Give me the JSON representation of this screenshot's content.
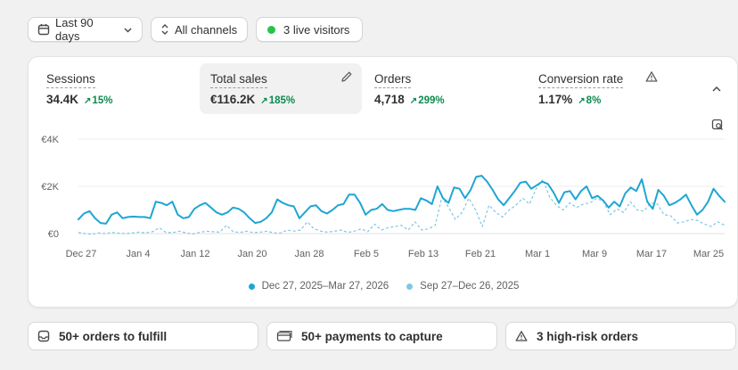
{
  "filters": {
    "date_range": "Last 90 days",
    "channels": "All channels",
    "live_visitors": "3 live visitors",
    "live_color": "#29c34a"
  },
  "metrics": [
    {
      "label": "Sessions",
      "value": "34.4K",
      "change": "15%",
      "active": false
    },
    {
      "label": "Total sales",
      "value": "€116.2K",
      "change": "185%",
      "active": true
    },
    {
      "label": "Orders",
      "value": "4,718",
      "change": "299%",
      "active": false
    },
    {
      "label": "Conversion rate",
      "value": "1.17%",
      "change": "8%",
      "active": false
    }
  ],
  "colors": {
    "positive": "#0c8a4f",
    "current_series": "#1ea6d3",
    "previous_series": "#7fc7e3"
  },
  "chart_data": {
    "type": "line",
    "y_ticks": [
      "€4K",
      "€2K",
      "€0"
    ],
    "ylim": [
      0,
      4000
    ],
    "x_tick_labels": [
      "Dec 27",
      "Jan 4",
      "Jan 12",
      "Jan 20",
      "Jan 28",
      "Feb 5",
      "Feb 13",
      "Feb 21",
      "Mar 1",
      "Mar 9",
      "Mar 17",
      "Mar 25"
    ],
    "grid": true,
    "legend_position": "bottom",
    "series": [
      {
        "name": "Dec 27, 2025–Mar 27, 2026",
        "style": "solid",
        "values": [
          600,
          850,
          950,
          650,
          450,
          420,
          800,
          900,
          650,
          700,
          720,
          700,
          700,
          650,
          1350,
          1300,
          1200,
          1350,
          800,
          650,
          700,
          1050,
          1200,
          1300,
          1100,
          900,
          800,
          900,
          1100,
          1050,
          900,
          650,
          450,
          500,
          650,
          900,
          1450,
          1300,
          1200,
          1150,
          650,
          900,
          1150,
          1200,
          950,
          850,
          1000,
          1200,
          1250,
          1650,
          1650,
          1300,
          800,
          1000,
          1050,
          1250,
          1000,
          950,
          1000,
          1050,
          1050,
          1000,
          1500,
          1400,
          1250,
          2000,
          1500,
          1300,
          1950,
          1900,
          1500,
          1850,
          2400,
          2450,
          2200,
          1850,
          1450,
          1200,
          1500,
          1800,
          2150,
          2200,
          1900,
          2050,
          2200,
          2100,
          1750,
          1300,
          1750,
          1800,
          1450,
          1800,
          2000,
          1500,
          1600,
          1400,
          1100,
          1350,
          1150,
          1700,
          1950,
          1800,
          2300,
          1350,
          1050,
          1850,
          1600,
          1200,
          1300,
          1450,
          1650,
          1200,
          800,
          1000,
          1350,
          1900,
          1600,
          1350
        ]
      },
      {
        "name": "Sep 27–Dec 26, 2025",
        "style": "dashed",
        "values": [
          50,
          0,
          -30,
          30,
          0,
          50,
          20,
          0,
          30,
          60,
          30,
          80,
          250,
          50,
          40,
          100,
          30,
          -20,
          50,
          100,
          80,
          60,
          350,
          80,
          50,
          100,
          40,
          60,
          100,
          30,
          20,
          150,
          100,
          150,
          500,
          200,
          100,
          60,
          100,
          150,
          50,
          100,
          200,
          80,
          400,
          150,
          250,
          300,
          350,
          150,
          500,
          150,
          200,
          350,
          1550,
          1100,
          600,
          900,
          1500,
          1000,
          300,
          1200,
          900,
          700,
          1000,
          1200,
          1500,
          1250,
          1900,
          2300,
          1550,
          1200,
          1000,
          1300,
          1100,
          1250,
          1300,
          1500,
          1350,
          800,
          1050,
          900,
          1350,
          1000,
          950,
          1300,
          1250,
          800,
          750,
          450,
          500,
          600,
          550,
          400,
          300,
          500,
          350
        ]
      }
    ]
  },
  "actions": [
    {
      "label": "50+ orders to fulfill",
      "icon": "inbox-icon"
    },
    {
      "label": "50+ payments to capture",
      "icon": "credit-card-icon"
    },
    {
      "label": "3 high-risk orders",
      "icon": "warning-icon"
    }
  ]
}
